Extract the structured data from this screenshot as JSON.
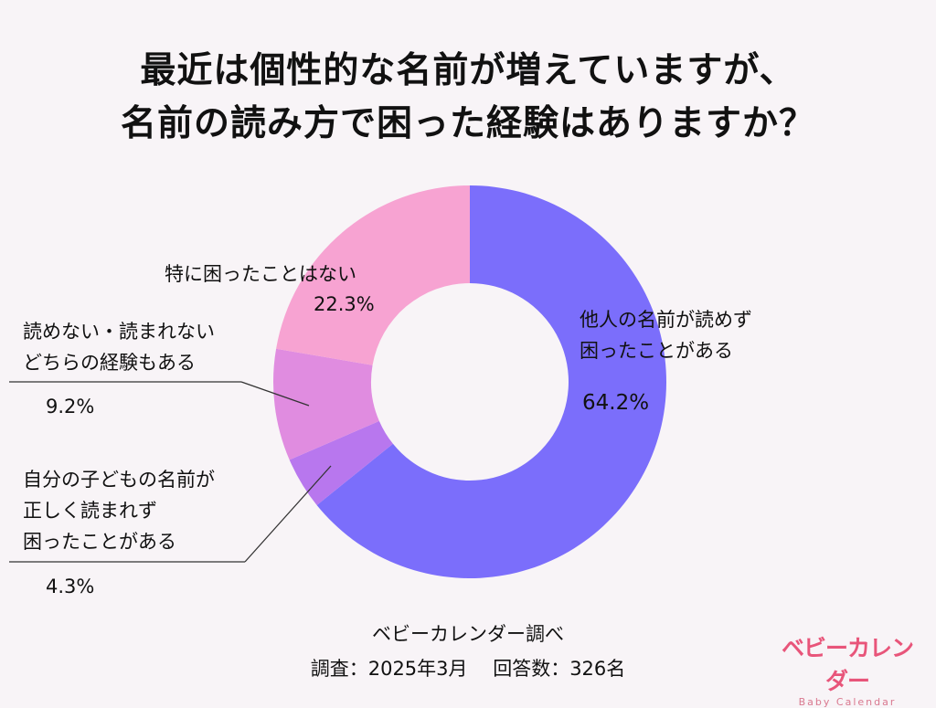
{
  "title": [
    "最近は個性的な名前が増えていますが、",
    "名前の読み方で困った経験はありますか？"
  ],
  "chart_data": {
    "type": "pie",
    "donut": true,
    "title": "最近は個性的な名前が増えていますが、名前の読み方で困った経験はありますか？",
    "slices": [
      {
        "label": "他人の名前が読めず困ったことがある",
        "label_lines": [
          "他人の名前が読めず",
          "困ったことがある"
        ],
        "value": 64.2,
        "value_label": "64.2%",
        "color": "#7b6efb"
      },
      {
        "label": "自分の子どもの名前が正しく読まれず困ったことがある",
        "label_lines": [
          "自分の子どもの名前が",
          "正しく読まれず",
          "困ったことがある"
        ],
        "value": 4.3,
        "value_label": "4.3%",
        "color": "#b877ee"
      },
      {
        "label": "読めない・読まれないどちらの経験もある",
        "label_lines": [
          "読めない・読まれない",
          "どちらの経験もある"
        ],
        "value": 9.2,
        "value_label": "9.2%",
        "color": "#e08ce0"
      },
      {
        "label": "特に困ったことはない",
        "label_lines": [
          "特に困ったことはない"
        ],
        "value": 22.3,
        "value_label": "22.3%",
        "color": "#f7a3d2"
      }
    ],
    "start": "12 o'clock",
    "direction": "clockwise"
  },
  "footer": {
    "source": "ベビーカレンダー調べ",
    "survey": "調査：2025年3月　 回答数：326名"
  },
  "logo": {
    "jp": "ベビーカレンダー",
    "en": "Baby Calendar"
  }
}
